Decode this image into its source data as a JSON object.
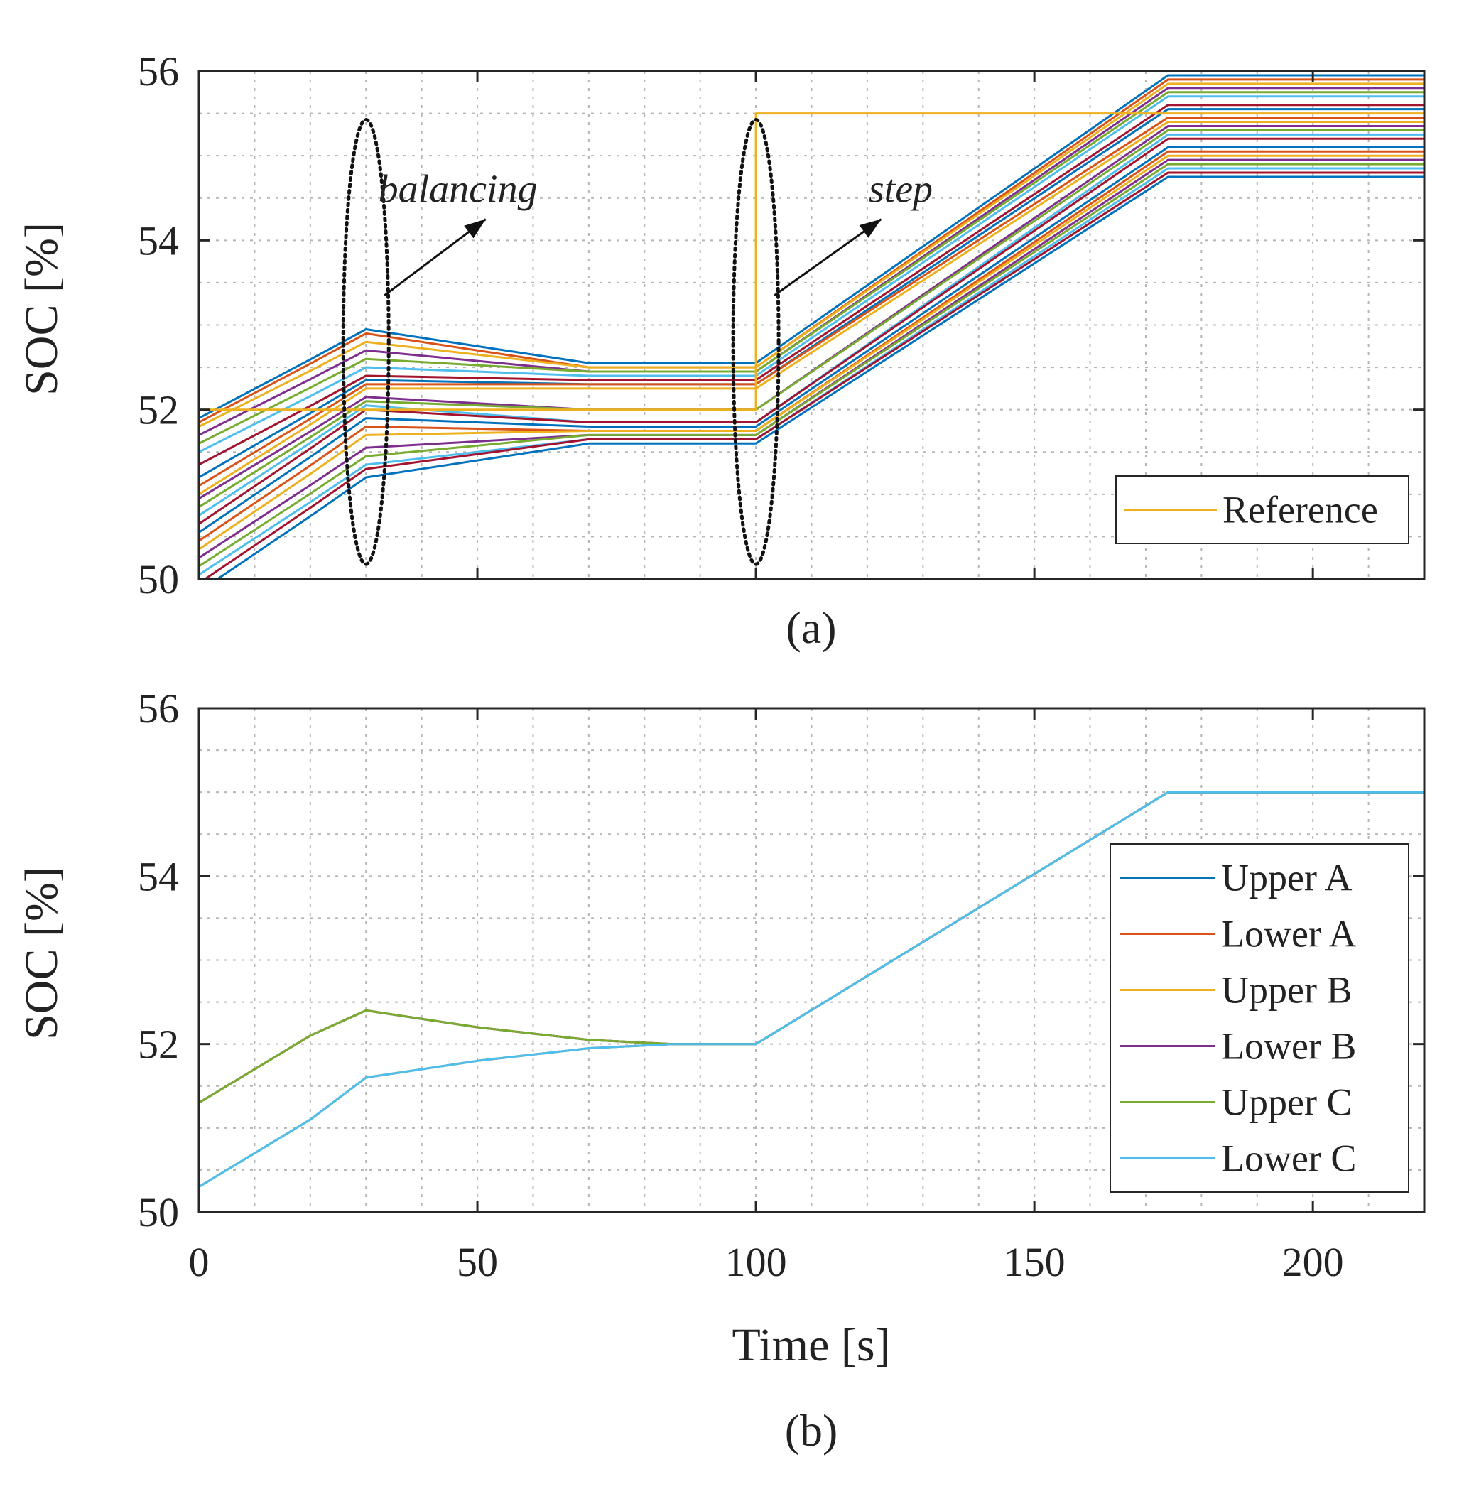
{
  "chart_data": [
    {
      "id": "a",
      "type": "line",
      "caption": "(a)",
      "ylabel": "SOC [%]",
      "xlim": [
        0,
        220
      ],
      "ylim": [
        50,
        56
      ],
      "xticks": [
        0,
        50,
        100,
        150,
        200
      ],
      "yticks": [
        50,
        52,
        54,
        56
      ],
      "show_xtick_labels": false,
      "grid": true,
      "legend": {
        "placement": "bottom-right",
        "entries": [
          "Reference"
        ]
      },
      "reference": {
        "name": "Reference",
        "color": "#EDB120",
        "x": [
          0,
          100,
          100,
          220
        ],
        "y": [
          52,
          52,
          55.5,
          55.5
        ]
      },
      "cell_traces": {
        "x": [
          0,
          20,
          30,
          70,
          100,
          174,
          220
        ],
        "colors": [
          "#0072BD",
          "#D95319",
          "#EDB120",
          "#7E2F8E",
          "#77AC30",
          "#4DBEEE",
          "#A2142F"
        ],
        "start_soc": [
          51.9,
          51.85,
          51.8,
          51.7,
          51.6,
          51.5,
          51.35,
          51.2,
          51.1,
          51.0,
          50.95,
          50.85,
          50.75,
          50.65,
          50.55,
          50.45,
          50.35,
          50.25,
          50.15,
          50.05,
          49.95,
          49.85
        ],
        "peak_soc": [
          52.95,
          52.9,
          52.8,
          52.7,
          52.6,
          52.5,
          52.4,
          52.35,
          52.3,
          52.25,
          52.15,
          52.1,
          52.05,
          52.0,
          51.9,
          51.8,
          51.7,
          51.55,
          51.45,
          51.35,
          51.3,
          51.2
        ],
        "settled_soc": [
          52.55,
          52.5,
          52.5,
          52.45,
          52.45,
          52.4,
          52.35,
          52.3,
          52.3,
          52.25,
          52.0,
          52.0,
          51.85,
          51.85,
          51.8,
          51.75,
          51.75,
          51.7,
          51.7,
          51.65,
          51.65,
          51.6
        ],
        "final_soc": [
          55.95,
          55.9,
          55.85,
          55.8,
          55.75,
          55.7,
          55.6,
          55.55,
          55.45,
          55.4,
          55.35,
          55.3,
          55.25,
          55.2,
          55.1,
          55.05,
          55.0,
          54.95,
          54.9,
          54.85,
          54.8,
          54.75
        ]
      },
      "annotations": [
        {
          "text": "balancing",
          "x": 30,
          "y": 53.7
        },
        {
          "text": "step",
          "x": 100,
          "y": 53.7
        }
      ]
    },
    {
      "id": "b",
      "type": "line",
      "caption": "(b)",
      "ylabel": "SOC [%]",
      "xlabel": "Time [s]",
      "xlim": [
        0,
        220
      ],
      "ylim": [
        50,
        56
      ],
      "xticks": [
        0,
        50,
        100,
        150,
        200
      ],
      "yticks": [
        50,
        52,
        54,
        56
      ],
      "show_xtick_labels": true,
      "grid": true,
      "legend": {
        "placement": "bottom-right"
      },
      "series": [
        {
          "name": "Upper A",
          "color": "#0072BD",
          "x": [
            0,
            20,
            30,
            50,
            70,
            85,
            100,
            174,
            220
          ],
          "y": [
            50.3,
            51.1,
            51.6,
            51.8,
            51.95,
            52.0,
            52.0,
            55.0,
            55.0
          ]
        },
        {
          "name": "Lower A",
          "color": "#D95319",
          "x": [
            0,
            20,
            30,
            50,
            70,
            85,
            100,
            174,
            220
          ],
          "y": [
            51.3,
            52.1,
            52.4,
            52.2,
            52.05,
            52.0,
            52.0,
            55.0,
            55.0
          ]
        },
        {
          "name": "Upper B",
          "color": "#EDB120",
          "x": [
            0,
            20,
            30,
            50,
            70,
            85,
            100,
            174,
            220
          ],
          "y": [
            50.3,
            51.1,
            51.6,
            51.8,
            51.95,
            52.0,
            52.0,
            55.0,
            55.0
          ]
        },
        {
          "name": "Lower B",
          "color": "#7E2F8E",
          "x": [
            0,
            20,
            30,
            50,
            70,
            85,
            100,
            174,
            220
          ],
          "y": [
            51.3,
            52.1,
            52.4,
            52.2,
            52.05,
            52.0,
            52.0,
            55.0,
            55.0
          ]
        },
        {
          "name": "Upper C",
          "color": "#77AC30",
          "x": [
            0,
            20,
            30,
            50,
            70,
            85,
            100,
            174,
            220
          ],
          "y": [
            51.3,
            52.1,
            52.4,
            52.2,
            52.05,
            52.0,
            52.0,
            55.0,
            55.0
          ]
        },
        {
          "name": "Lower C",
          "color": "#4DBEEE",
          "x": [
            0,
            20,
            30,
            50,
            70,
            85,
            100,
            174,
            220
          ],
          "y": [
            50.3,
            51.1,
            51.6,
            51.8,
            51.95,
            52.0,
            52.0,
            55.0,
            55.0
          ]
        }
      ]
    }
  ]
}
